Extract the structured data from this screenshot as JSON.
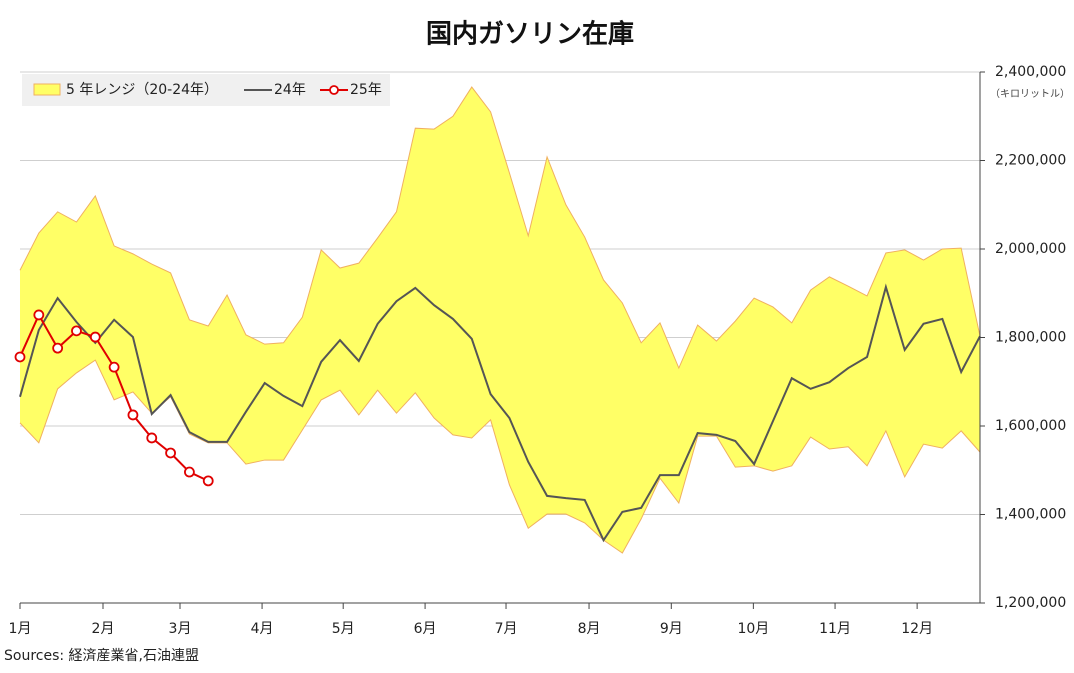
{
  "chart_data": {
    "type": "line",
    "title": "国内ガソリン在庫",
    "unit_label": "（キロリットル）",
    "source": "Sources: 経済産業省,石油連盟",
    "x": [
      0,
      1,
      2,
      3,
      4,
      5,
      6,
      7,
      8,
      9,
      10,
      11,
      12,
      13,
      14,
      15,
      16,
      17,
      18,
      19,
      20,
      21,
      22,
      23,
      24,
      25,
      26,
      27,
      28,
      29,
      30,
      31,
      32,
      33,
      34,
      35,
      36,
      37,
      38,
      39,
      40,
      41,
      42,
      43,
      44,
      45,
      46,
      47,
      48,
      49,
      50,
      51
    ],
    "xlim": [
      0,
      51
    ],
    "xticks": [
      {
        "value": 0,
        "label": "1月"
      },
      {
        "value": 4.41,
        "label": "2月"
      },
      {
        "value": 8.5,
        "label": "3月"
      },
      {
        "value": 12.86,
        "label": "4月"
      },
      {
        "value": 17.17,
        "label": "5月"
      },
      {
        "value": 21.52,
        "label": "6月"
      },
      {
        "value": 25.82,
        "label": "7月"
      },
      {
        "value": 30.23,
        "label": "8月"
      },
      {
        "value": 34.6,
        "label": "9月"
      },
      {
        "value": 38.96,
        "label": "10月"
      },
      {
        "value": 43.3,
        "label": "11月"
      },
      {
        "value": 47.66,
        "label": "12月"
      }
    ],
    "ylim": [
      1200000,
      2400000
    ],
    "yticks": [
      {
        "value": 1200000,
        "label": "1,200,000"
      },
      {
        "value": 1400000,
        "label": "1,400,000"
      },
      {
        "value": 1600000,
        "label": "1,600,000"
      },
      {
        "value": 1800000,
        "label": "1,800,000"
      },
      {
        "value": 2000000,
        "label": "2,000,000"
      },
      {
        "value": 2200000,
        "label": "2,200,000"
      },
      {
        "value": 2400000,
        "label": "2,400,000"
      }
    ],
    "grid": true,
    "legend": "upper left",
    "band": {
      "name": "5 年レンジ（20-24年）",
      "color": "#ffff66",
      "edge_color": "#f0b060",
      "high": [
        1952000,
        2036000,
        2084000,
        2061000,
        2120000,
        2007000,
        1989000,
        1966000,
        1946000,
        1840000,
        1826000,
        1896000,
        1806000,
        1785000,
        1788000,
        1846000,
        1998000,
        1957000,
        1968000,
        2025000,
        2084000,
        2273000,
        2271000,
        2300000,
        2366000,
        2310000,
        2172000,
        2030000,
        2208000,
        2100000,
        2027000,
        1930000,
        1878000,
        1788000,
        1833000,
        1731000,
        1828000,
        1792000,
        1837000,
        1889000,
        1869000,
        1833000,
        1907000,
        1937000,
        1916000,
        1894000,
        1991000,
        1998000,
        1975000,
        2000000,
        2002000,
        1803000
      ],
      "low": [
        1607000,
        1562000,
        1684000,
        1720000,
        1749000,
        1659000,
        1677000,
        1629000,
        1666000,
        1582000,
        1562000,
        1562000,
        1514000,
        1523000,
        1523000,
        1591000,
        1659000,
        1681000,
        1625000,
        1681000,
        1629000,
        1675000,
        1618000,
        1580000,
        1573000,
        1614000,
        1467000,
        1369000,
        1401000,
        1401000,
        1381000,
        1342000,
        1313000,
        1390000,
        1482000,
        1426000,
        1577000,
        1577000,
        1507000,
        1510000,
        1498000,
        1510000,
        1575000,
        1548000,
        1553000,
        1510000,
        1589000,
        1485000,
        1559000,
        1550000,
        1589000,
        1541000
      ]
    },
    "series": [
      {
        "name": "24年",
        "color": "#555555",
        "marker": false,
        "values": [
          1666000,
          1817000,
          1889000,
          1835000,
          1788000,
          1840000,
          1801000,
          1627000,
          1670000,
          1586000,
          1564000,
          1564000,
          1632000,
          1697000,
          1668000,
          1645000,
          1745000,
          1794000,
          1747000,
          1831000,
          1882000,
          1912000,
          1873000,
          1842000,
          1797000,
          1672000,
          1618000,
          1519000,
          1442000,
          1437000,
          1433000,
          1342000,
          1406000,
          1415000,
          1489000,
          1489000,
          1584000,
          1580000,
          1566000,
          1514000,
          1611000,
          1708000,
          1684000,
          1699000,
          1731000,
          1756000,
          1914000,
          1772000,
          1831000,
          1842000,
          1722000,
          1803000
        ]
      },
      {
        "name": "25年",
        "color": "#e00000",
        "marker": true,
        "values": [
          1756000,
          1851000,
          1776000,
          1815000,
          1801000,
          1733000,
          1625000,
          1573000,
          1539000,
          1496000,
          1476000,
          null,
          null,
          null,
          null,
          null,
          null,
          null,
          null,
          null,
          null,
          null,
          null,
          null,
          null,
          null,
          null,
          null,
          null,
          null,
          null,
          null,
          null,
          null,
          null,
          null,
          null,
          null,
          null,
          null,
          null,
          null,
          null,
          null,
          null,
          null,
          null,
          null,
          null,
          null,
          null,
          null
        ]
      }
    ]
  }
}
